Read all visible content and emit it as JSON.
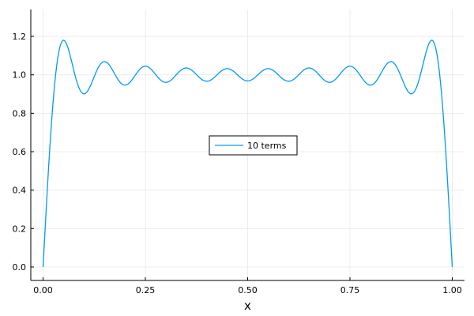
{
  "chart_data": {
    "type": "line",
    "title": "",
    "xlabel": "x",
    "ylabel": "",
    "xlim": [
      -0.03,
      1.03
    ],
    "ylim": [
      -0.07,
      1.34
    ],
    "xticks": [
      0.0,
      0.25,
      0.5,
      0.75,
      1.0
    ],
    "xtick_labels": [
      "0.00",
      "0.25",
      "0.50",
      "0.75",
      "1.00"
    ],
    "yticks": [
      0.0,
      0.2,
      0.4,
      0.6,
      0.8,
      1.0,
      1.2
    ],
    "ytick_labels": [
      "0.0",
      "0.2",
      "0.4",
      "0.6",
      "0.8",
      "1.0",
      "1.2"
    ],
    "grid": true,
    "legend_position": "center",
    "series": [
      {
        "name": "10 terms",
        "color": "#009af9",
        "function": "square wave Fourier partial sum, 10 odd harmonics",
        "x": [
          0.0,
          0.045,
          0.09,
          0.136,
          0.182,
          0.227,
          0.273,
          0.318,
          0.364,
          0.409,
          0.455,
          0.5,
          0.545,
          0.591,
          0.636,
          0.682,
          0.727,
          0.773,
          0.818,
          0.864,
          0.909,
          0.955,
          1.0
        ],
        "y": [
          0.0,
          1.18,
          0.9,
          1.066,
          0.948,
          1.042,
          0.963,
          1.033,
          0.97,
          1.028,
          0.974,
          1.026,
          0.974,
          1.028,
          0.97,
          1.033,
          0.963,
          1.042,
          0.948,
          1.066,
          0.9,
          1.18,
          0.0
        ]
      }
    ]
  }
}
